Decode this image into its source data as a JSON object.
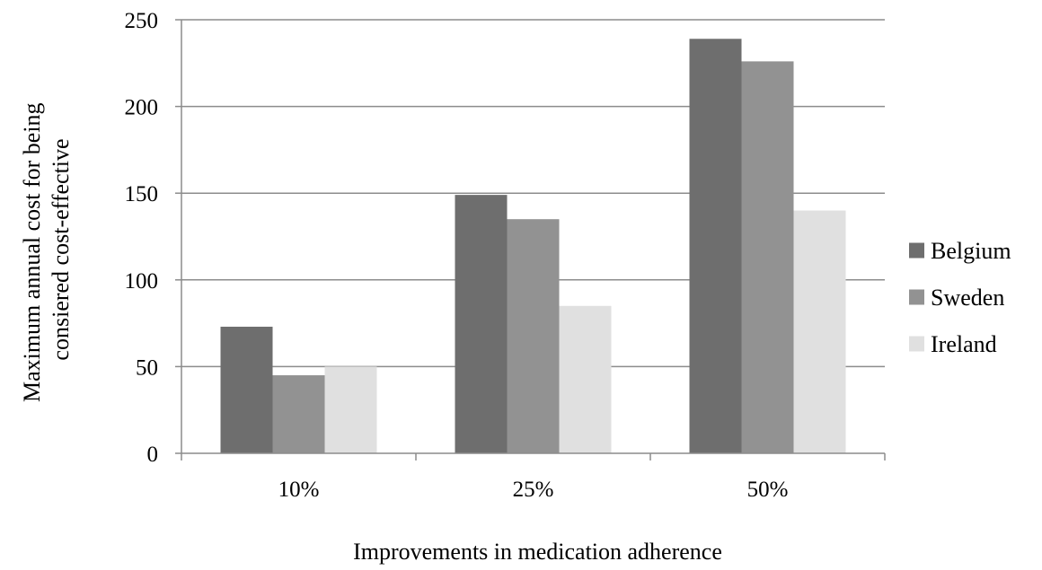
{
  "chart_data": {
    "type": "bar",
    "title": "",
    "xlabel": "Improvements in medication adherence",
    "ylabel_lines": [
      "Maximum annual cost for being",
      "consiered cost-effective"
    ],
    "categories": [
      "10%",
      "25%",
      "50%"
    ],
    "series": [
      {
        "name": "Belgium",
        "color": "#6e6e6e",
        "values": [
          73,
          149,
          239
        ]
      },
      {
        "name": "Sweden",
        "color": "#929292",
        "values": [
          45,
          135,
          226
        ]
      },
      {
        "name": "Ireland",
        "color": "#e0e0e0",
        "values": [
          50,
          85,
          140
        ]
      }
    ],
    "ylim": [
      0,
      250
    ],
    "yticks": [
      0,
      50,
      100,
      150,
      200,
      250
    ],
    "grid": true,
    "legend_position": "right"
  }
}
